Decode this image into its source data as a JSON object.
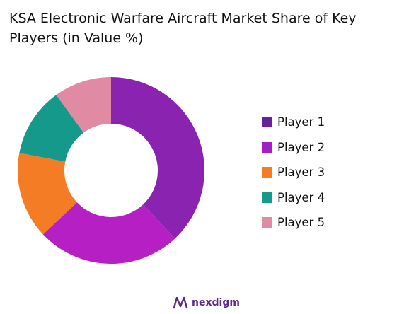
{
  "chart_data": {
    "type": "pie",
    "title": "KSA Electronic Warfare Aircraft Market Share of Key Players (in Value %)",
    "categories": [
      "Player 1",
      "Player 2",
      "Player 3",
      "Player 4",
      "Player 5"
    ],
    "values": [
      38,
      25,
      15,
      12,
      10
    ],
    "colors": [
      "#8a24b0",
      "#b51fc4",
      "#f47c24",
      "#14998a",
      "#e08aa3"
    ],
    "legend_colors": [
      "#6a1fa0",
      "#a31fc4",
      "#f47c24",
      "#14998a",
      "#e08aa3"
    ],
    "donut": true,
    "legend_position": "right"
  },
  "branding": {
    "logo_text": "nexdigm"
  }
}
